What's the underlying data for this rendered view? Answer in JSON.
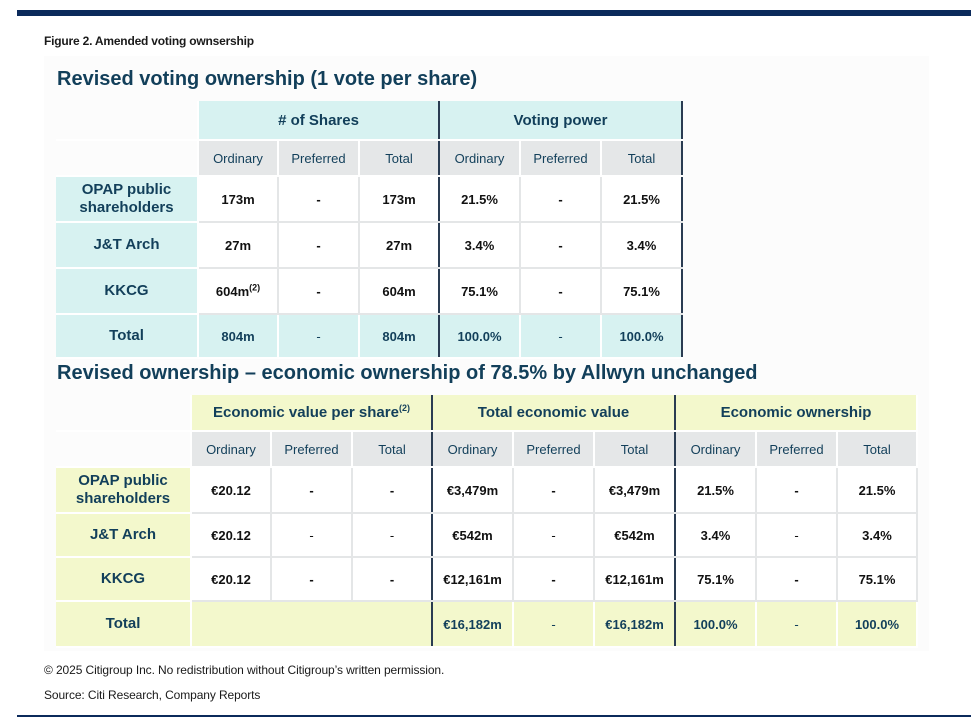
{
  "figure_caption": "Figure 2. Amended voting ownsership",
  "voting_table": {
    "title": "Revised voting ownership (1 vote per share)",
    "groups": [
      "# of Shares",
      "Voting power"
    ],
    "subheaders": [
      "Ordinary",
      "Preferred",
      "Total",
      "Ordinary",
      "Preferred",
      "Total"
    ],
    "rows": [
      {
        "label": "OPAP public shareholders",
        "cells": [
          "173m",
          "-",
          "173m",
          "21.5%",
          "-",
          "21.5%"
        ]
      },
      {
        "label": "J&T Arch",
        "cells": [
          "27m",
          "-",
          "27m",
          "3.4%",
          "-",
          "3.4%"
        ]
      },
      {
        "label": "KKCG",
        "cells": [
          "604m",
          "-",
          "604m",
          "75.1%",
          "-",
          "75.1%"
        ],
        "note": "(2)"
      },
      {
        "label": "Total",
        "cells": [
          "804m",
          "-",
          "804m",
          "100.0%",
          "-",
          "100.0%"
        ]
      }
    ]
  },
  "economic_table": {
    "title": "Revised ownership – economic ownership of 78.5% by Allwyn unchanged",
    "groups": [
      "Economic value per share",
      "Total economic value",
      "Economic ownership"
    ],
    "group_note": "(2)",
    "subheaders": [
      "Ordinary",
      "Preferred",
      "Total",
      "Ordinary",
      "Preferred",
      "Total",
      "Ordinary",
      "Preferred",
      "Total"
    ],
    "rows": [
      {
        "label": "OPAP public shareholders",
        "cells": [
          "€20.12",
          "-",
          "-",
          "€3,479m",
          "-",
          "€3,479m",
          "21.5%",
          "-",
          "21.5%"
        ]
      },
      {
        "label": "J&T Arch",
        "cells": [
          "€20.12",
          "-",
          "-",
          "€542m",
          "-",
          "€542m",
          "3.4%",
          "-",
          "3.4%"
        ]
      },
      {
        "label": "KKCG",
        "cells": [
          "€20.12",
          "-",
          "-",
          "€12,161m",
          "-",
          "€12,161m",
          "75.1%",
          "-",
          "75.1%"
        ]
      },
      {
        "label": "Total",
        "cells": [
          "",
          "€16,182m",
          "-",
          "€16,182m",
          "100.0%",
          "-",
          "100.0%"
        ]
      }
    ]
  },
  "copyright": "© 2025 Citigroup Inc. No redistribution without Citigroup’s written permission.",
  "source": "Source: Citi Research, Company Reports",
  "colors": {
    "navy_rule": "#0b2a5b",
    "title_text": "#123f5a",
    "teal_fill": "#d7f2f1",
    "lime_fill": "#f3f8cc",
    "subheader_fill": "#e5e7e8"
  }
}
